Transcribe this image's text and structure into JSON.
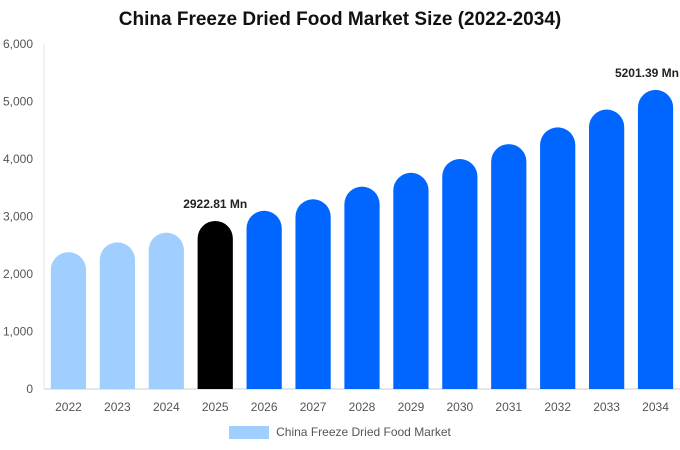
{
  "chart_data": {
    "type": "bar",
    "title": "China Freeze Dried Food Market Size (2022-2034)",
    "categories": [
      "2022",
      "2023",
      "2024",
      "2025",
      "2026",
      "2027",
      "2028",
      "2029",
      "2030",
      "2031",
      "2032",
      "2033",
      "2034"
    ],
    "series": [
      {
        "name": "China Freeze Dried Food Market",
        "values": [
          2380,
          2550,
          2720,
          2922.81,
          3100,
          3300,
          3520,
          3760,
          4000,
          4260,
          4550,
          4860,
          5201.39
        ]
      }
    ],
    "data_labels": [
      {
        "category": "2025",
        "text": "2922.81 Mn"
      },
      {
        "category": "2034",
        "text": "5201.39 Mn"
      }
    ],
    "y_ticks": [
      "0",
      "1,000",
      "2,000",
      "3,000",
      "4,000",
      "5,000",
      "6,000"
    ],
    "ylim": [
      0,
      6000
    ],
    "xlabel": "",
    "ylabel": "",
    "grid": false,
    "legend_position": "bottom-center",
    "colors": {
      "historical": "#a0cfff",
      "current": "#000000",
      "forecast": "#0066ff"
    },
    "bar_color_groups": [
      "historical",
      "historical",
      "historical",
      "current",
      "forecast",
      "forecast",
      "forecast",
      "forecast",
      "forecast",
      "forecast",
      "forecast",
      "forecast",
      "forecast"
    ]
  }
}
